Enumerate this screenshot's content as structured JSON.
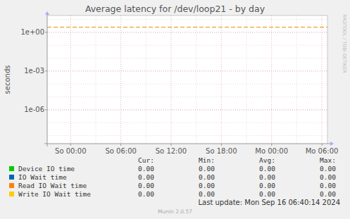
{
  "chart_data": {
    "type": "line",
    "title": "Average latency for /dev/loop21 - by day",
    "y_label": "seconds",
    "side_text": "RRDTOOL / TOBI OETIKER",
    "footer": "Last update: Mon Sep 16 06:40:14 2024",
    "credit": "Munin 2.0.57",
    "log": "y",
    "grid": true,
    "x": [
      21.2,
      24,
      30,
      36,
      42,
      48,
      54.67
    ],
    "xlim": [
      21.2,
      54.67
    ],
    "xticks": [
      {
        "value": 24,
        "label": "So 00:00"
      },
      {
        "value": 30,
        "label": "So 06:00"
      },
      {
        "value": 36,
        "label": "So 12:00"
      },
      {
        "value": 42,
        "label": "So 18:00"
      },
      {
        "value": 48,
        "label": "Mo 00:00"
      },
      {
        "value": 54,
        "label": "Mo 06:00"
      }
    ],
    "ylim": [
      2.4e-09,
      20
    ],
    "yticks": [
      {
        "value": 1e-06,
        "label": "1e-06"
      },
      {
        "value": 0.001,
        "label": "1e-03"
      },
      {
        "value": 1,
        "label": "1e+00"
      }
    ],
    "legend_columns": [
      "Cur:",
      "Min:",
      "Avg:",
      "Max:"
    ],
    "series": [
      {
        "name": "Device IO time",
        "color": "#00cc00",
        "values": [
          0,
          0,
          0,
          0,
          0,
          0,
          0
        ],
        "stats": [
          "0.00",
          "0.00",
          "0.00",
          "0.00"
        ]
      },
      {
        "name": "IO Wait time",
        "color": "#0066b3",
        "values": [
          0,
          0,
          0,
          0,
          0,
          0,
          0
        ],
        "stats": [
          "0.00",
          "0.00",
          "0.00",
          "0.00"
        ]
      },
      {
        "name": "Read IO Wait time",
        "color": "#ff8000",
        "values": [
          0,
          0,
          0,
          0,
          0,
          0,
          0
        ],
        "stats": [
          "0.00",
          "0.00",
          "0.00",
          "0.00"
        ]
      },
      {
        "name": "Write IO Wait time",
        "color": "#ffcc00",
        "values": [
          0,
          0,
          0,
          0,
          0,
          0,
          0
        ],
        "stats": [
          "0.00",
          "0.00",
          "0.00",
          "0.00"
        ]
      },
      {
        "color": "#e89000",
        "line_style": "dashed",
        "values": [
          2.5,
          2.5,
          2.5,
          2.5,
          2.5,
          2.5,
          2.5
        ]
      }
    ]
  }
}
